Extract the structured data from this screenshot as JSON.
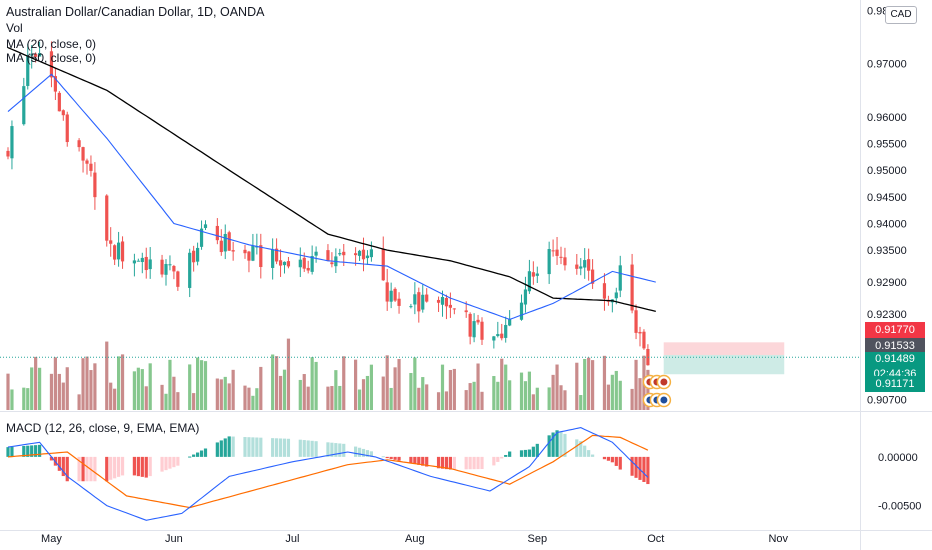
{
  "header": {
    "title": "Australian Dollar/Canadian Dollar, 1D, OANDA",
    "volume_label": "Vol",
    "ma20_label": "MA (20, close, 0)",
    "ma50_label": "MA (50, close, 0)",
    "currency_button": "CAD"
  },
  "macd_panel": {
    "label": "MACD (12, 26, close, 9, EMA, EMA)"
  },
  "price_tags": {
    "red": "0.91770",
    "dark": "0.91533",
    "green_price": "0.91489",
    "green_countdown": "02:44:36",
    "green_low": "0.91171"
  },
  "colors": {
    "up": "#26a69a",
    "down": "#ef5350",
    "vol_up": "#86c78e",
    "vol_down": "#c98b8b",
    "ma20": "#2962ff",
    "ma50": "#000000",
    "macd_line": "#2962ff",
    "signal_line": "#ff6d00",
    "hist_pos_strong": "#26a69a",
    "hist_pos_weak": "#b2dfdb",
    "hist_neg_strong": "#ef5350",
    "hist_neg_weak": "#ffcdd2"
  },
  "chart_data": [
    {
      "type": "candlestick",
      "title": "Australian Dollar/Canadian Dollar, 1D, OANDA",
      "y_ticks": [
        "0.98000",
        "0.97000",
        "0.96000",
        "0.95500",
        "0.95000",
        "0.94500",
        "0.94000",
        "0.93500",
        "0.92900",
        "0.92300",
        "0.90700"
      ],
      "x_labels": [
        "May",
        "Jun",
        "Jul",
        "Aug",
        "Sep",
        "Oct",
        "Nov"
      ],
      "ylim": [
        0.905,
        0.981
      ],
      "close_anchors": [
        {
          "date": "Apr 20",
          "close": 0.954
        },
        {
          "date": "Apr 25",
          "close": 0.97
        },
        {
          "date": "Apr 29",
          "close": 0.9725
        },
        {
          "date": "May 5",
          "close": 0.956
        },
        {
          "date": "May 12",
          "close": 0.947
        },
        {
          "date": "May 16",
          "close": 0.935
        },
        {
          "date": "May 25",
          "close": 0.933
        },
        {
          "date": "Jun 2",
          "close": 0.93
        },
        {
          "date": "Jun 9",
          "close": 0.938
        },
        {
          "date": "Jun 20",
          "close": 0.934
        },
        {
          "date": "Jul 1",
          "close": 0.932
        },
        {
          "date": "Jul 12",
          "close": 0.933
        },
        {
          "date": "Jul 20",
          "close": 0.935
        },
        {
          "date": "Jul 25",
          "close": 0.926
        },
        {
          "date": "Aug 1",
          "close": 0.925
        },
        {
          "date": "Aug 10",
          "close": 0.924
        },
        {
          "date": "Aug 18",
          "close": 0.919
        },
        {
          "date": "Aug 23",
          "close": 0.918
        },
        {
          "date": "Aug 28",
          "close": 0.927
        },
        {
          "date": "Sep 4",
          "close": 0.935
        },
        {
          "date": "Sep 13",
          "close": 0.933
        },
        {
          "date": "Sep 18",
          "close": 0.924
        },
        {
          "date": "Sep 22",
          "close": 0.93
        },
        {
          "date": "Sep 29",
          "close": 0.915
        }
      ],
      "ma20_anchors": [
        {
          "date": "Apr 20",
          "value": 0.961
        },
        {
          "date": "May 1",
          "value": 0.968
        },
        {
          "date": "May 15",
          "value": 0.956
        },
        {
          "date": "Jun 1",
          "value": 0.94
        },
        {
          "date": "Jun 20",
          "value": 0.936
        },
        {
          "date": "Jul 10",
          "value": 0.933
        },
        {
          "date": "Jul 25",
          "value": 0.932
        },
        {
          "date": "Aug 10",
          "value": 0.926
        },
        {
          "date": "Aug 25",
          "value": 0.922
        },
        {
          "date": "Sep 5",
          "value": 0.925
        },
        {
          "date": "Sep 20",
          "value": 0.931
        },
        {
          "date": "Oct 1",
          "value": 0.929
        }
      ],
      "ma50_anchors": [
        {
          "date": "Apr 20",
          "value": 0.973
        },
        {
          "date": "May 15",
          "value": 0.965
        },
        {
          "date": "Jun 15",
          "value": 0.95
        },
        {
          "date": "Jul 10",
          "value": 0.938
        },
        {
          "date": "Jul 25",
          "value": 0.935
        },
        {
          "date": "Aug 10",
          "value": 0.933
        },
        {
          "date": "Aug 25",
          "value": 0.93
        },
        {
          "date": "Sep 5",
          "value": 0.926
        },
        {
          "date": "Sep 20",
          "value": 0.9255
        },
        {
          "date": "Oct 1",
          "value": 0.9235
        }
      ]
    },
    {
      "type": "bar",
      "title": "Vol",
      "note": "relative volume, no scale shown"
    },
    {
      "type": "line+histogram",
      "title": "MACD (12, 26, close, 9, EMA, EMA)",
      "y_ticks": [
        "0.00000",
        "-0.00500"
      ],
      "ylim": [
        -0.0075,
        0.0045
      ],
      "macd_anchors": [
        {
          "date": "Apr 20",
          "value": 0.001
        },
        {
          "date": "Apr 28",
          "value": 0.0015
        },
        {
          "date": "May 5",
          "value": -0.002
        },
        {
          "date": "May 15",
          "value": -0.005
        },
        {
          "date": "May 25",
          "value": -0.0065
        },
        {
          "date": "Jun 3",
          "value": -0.0058
        },
        {
          "date": "Jun 15",
          "value": -0.002
        },
        {
          "date": "Jul 1",
          "value": -0.0005
        },
        {
          "date": "Jul 15",
          "value": 0.0005
        },
        {
          "date": "Jul 22",
          "value": 0.0
        },
        {
          "date": "Aug 5",
          "value": -0.002
        },
        {
          "date": "Aug 20",
          "value": -0.0035
        },
        {
          "date": "Aug 30",
          "value": -0.001
        },
        {
          "date": "Sep 6",
          "value": 0.0025
        },
        {
          "date": "Sep 12",
          "value": 0.003
        },
        {
          "date": "Sep 20",
          "value": 0.0015
        },
        {
          "date": "Sep 30",
          "value": -0.0025
        }
      ],
      "signal_anchors": [
        {
          "date": "Apr 20",
          "value": 0.0
        },
        {
          "date": "May 5",
          "value": 0.0005
        },
        {
          "date": "May 20",
          "value": -0.004
        },
        {
          "date": "Jun 5",
          "value": -0.0052
        },
        {
          "date": "Jun 25",
          "value": -0.003
        },
        {
          "date": "Jul 15",
          "value": -0.0008
        },
        {
          "date": "Jul 25",
          "value": -0.0003
        },
        {
          "date": "Aug 10",
          "value": -0.0012
        },
        {
          "date": "Aug 25",
          "value": -0.0028
        },
        {
          "date": "Sep 5",
          "value": -0.0005
        },
        {
          "date": "Sep 15",
          "value": 0.0022
        },
        {
          "date": "Sep 22",
          "value": 0.002
        },
        {
          "date": "Sep 30",
          "value": 0.0005
        }
      ]
    }
  ]
}
